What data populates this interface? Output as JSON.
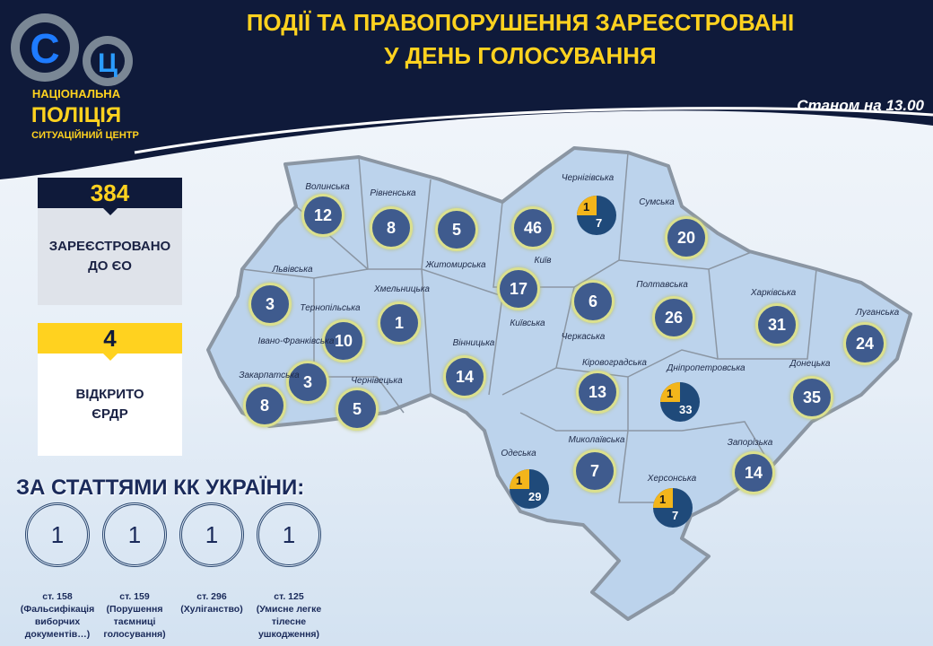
{
  "logo": {
    "line1": "НАЦІОНАЛЬНА",
    "line2": "ПОЛІЦІЯ",
    "line3": "СИТУАЦІЙНИЙ ЦЕНТР",
    "letters": "СЦ"
  },
  "title": {
    "line1": "ПОДІЇ ТА ПРАВОПОРУШЕННЯ ЗАРЕЄСТРОВАНІ",
    "line2": "У ДЕНЬ ГОЛОСУВАННЯ"
  },
  "as_of": "Станом на 13.00",
  "registered": {
    "value": "384",
    "label_1": "ЗАРЕЄСТРОВАНО",
    "label_2": "ДО ЄО"
  },
  "erdr": {
    "value": "4",
    "label_1": "ВІДКРИТО",
    "label_2": "ЄРДР"
  },
  "articles": {
    "heading": "ЗА СТАТТЯМИ КК УКРАЇНИ:",
    "items": [
      {
        "count": "1",
        "article": "ст. 158",
        "desc": "(Фальсифікація виборчих документів…)"
      },
      {
        "count": "1",
        "article": "ст. 159",
        "desc": "(Порушення таємниці голосування)"
      },
      {
        "count": "1",
        "article": "ст. 296",
        "desc": "(Хуліганство)"
      },
      {
        "count": "1",
        "article": "ст. 125",
        "desc": "(Умисне легке тілесне ушкодження)"
      }
    ]
  },
  "colors": {
    "navy": "#0f1a3a",
    "accent": "#ffd21f",
    "circle": "#3f5b8e",
    "pie_main": "#1f4a7a",
    "map": "#bcd3ec"
  },
  "regions": [
    {
      "name": "Волинська",
      "count": "12"
    },
    {
      "name": "Рівненська",
      "count": "8"
    },
    {
      "name": "Житомирська",
      "count": "5"
    },
    {
      "name": "Київ",
      "count": "46"
    },
    {
      "name": "Київська",
      "count": "17"
    },
    {
      "name": "Чернігівська",
      "count": "7",
      "erdr": "1"
    },
    {
      "name": "Сумська",
      "count": "20"
    },
    {
      "name": "Львівська",
      "count": "3"
    },
    {
      "name": "Тернопільська",
      "count": "10"
    },
    {
      "name": "Хмельницька",
      "count": "1"
    },
    {
      "name": "Івано-Франківська",
      "count": "3"
    },
    {
      "name": "Закарпатська",
      "count": "8"
    },
    {
      "name": "Чернівецька",
      "count": "5"
    },
    {
      "name": "Вінницька",
      "count": "14"
    },
    {
      "name": "Черкаська",
      "count": "6"
    },
    {
      "name": "Полтавська",
      "count": "26"
    },
    {
      "name": "Харківська",
      "count": "31"
    },
    {
      "name": "Луганська",
      "count": "24"
    },
    {
      "name": "Кіровоградська",
      "count": "13"
    },
    {
      "name": "Дніпропетровська",
      "count": "33",
      "erdr": "1"
    },
    {
      "name": "Донецька",
      "count": "35"
    },
    {
      "name": "Одеська",
      "count": "29",
      "erdr": "1"
    },
    {
      "name": "Миколаївська",
      "count": "7"
    },
    {
      "name": "Запорізька",
      "count": "14"
    },
    {
      "name": "Херсонська",
      "count": "7",
      "erdr": "1"
    }
  ]
}
